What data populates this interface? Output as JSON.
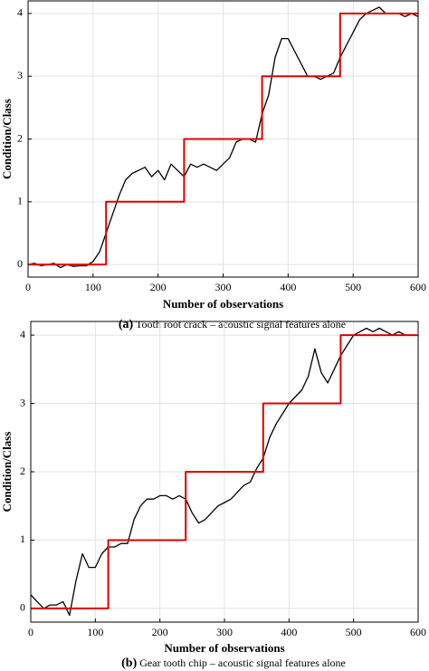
{
  "chart_data": [
    {
      "type": "line",
      "xlabel": "Number of observations",
      "ylabel": "Condition/Class",
      "caption_label": "(a)",
      "caption": "Tooth root crack – acoustic signal features alone",
      "xlim": [
        0,
        600
      ],
      "ylim": [
        -0.2,
        4.2
      ],
      "xticks": [
        0,
        100,
        200,
        300,
        400,
        500,
        600
      ],
      "yticks": [
        0,
        1,
        2,
        3,
        4
      ],
      "grid": true,
      "series": [
        {
          "color": "#000000",
          "x": [
            0,
            10,
            20,
            30,
            40,
            50,
            60,
            70,
            80,
            90,
            100,
            110,
            120,
            130,
            140,
            150,
            160,
            170,
            180,
            190,
            200,
            210,
            220,
            230,
            240,
            250,
            260,
            270,
            280,
            290,
            300,
            310,
            320,
            330,
            340,
            350,
            360,
            370,
            380,
            390,
            400,
            410,
            420,
            430,
            440,
            450,
            460,
            470,
            480,
            490,
            500,
            510,
            520,
            530,
            540,
            550,
            560,
            570,
            580,
            590,
            600
          ],
          "values": [
            0,
            0.02,
            -0.02,
            0,
            0.02,
            -0.05,
            0,
            -0.03,
            -0.02,
            -0.02,
            0.05,
            0.2,
            0.5,
            0.8,
            1.1,
            1.35,
            1.45,
            1.5,
            1.55,
            1.4,
            1.5,
            1.35,
            1.6,
            1.5,
            1.4,
            1.6,
            1.55,
            1.6,
            1.55,
            1.5,
            1.6,
            1.7,
            1.95,
            2.0,
            2.0,
            1.95,
            2.4,
            2.7,
            3.3,
            3.6,
            3.6,
            3.4,
            3.2,
            3.0,
            3.0,
            2.95,
            3.0,
            3.05,
            3.3,
            3.5,
            3.7,
            3.9,
            4.0,
            4.05,
            4.1,
            4.0,
            4.0,
            4.0,
            3.95,
            4.0,
            3.95
          ]
        },
        {
          "color": "#e00000",
          "x": [
            0,
            120,
            120,
            240,
            240,
            360,
            360,
            480,
            480,
            600
          ],
          "values": [
            0,
            0,
            1,
            1,
            2,
            2,
            3,
            3,
            4,
            4
          ]
        }
      ]
    },
    {
      "type": "line",
      "xlabel": "Number of observations",
      "ylabel": "Condition/Class",
      "caption_label": "(b)",
      "caption": "Gear tooth chip – acoustic signal features alone",
      "xlim": [
        0,
        600
      ],
      "ylim": [
        -0.2,
        4.2
      ],
      "xticks": [
        0,
        100,
        200,
        300,
        400,
        500,
        600
      ],
      "yticks": [
        0,
        1,
        2,
        3,
        4
      ],
      "grid": true,
      "series": [
        {
          "color": "#000000",
          "x": [
            0,
            10,
            20,
            30,
            40,
            50,
            60,
            70,
            80,
            90,
            100,
            110,
            120,
            130,
            140,
            150,
            160,
            170,
            180,
            190,
            200,
            210,
            220,
            230,
            240,
            250,
            260,
            270,
            280,
            290,
            300,
            310,
            320,
            330,
            340,
            350,
            360,
            370,
            380,
            390,
            400,
            410,
            420,
            430,
            440,
            450,
            460,
            470,
            480,
            490,
            500,
            510,
            520,
            530,
            540,
            550,
            560,
            570,
            580,
            590,
            600
          ],
          "values": [
            0.2,
            0.1,
            0,
            0.05,
            0.05,
            0.1,
            -0.1,
            0.4,
            0.8,
            0.6,
            0.6,
            0.8,
            0.9,
            0.9,
            0.95,
            0.95,
            1.3,
            1.5,
            1.6,
            1.6,
            1.65,
            1.65,
            1.6,
            1.65,
            1.6,
            1.4,
            1.25,
            1.3,
            1.4,
            1.5,
            1.55,
            1.6,
            1.7,
            1.8,
            1.85,
            2.05,
            2.2,
            2.5,
            2.7,
            2.85,
            3.0,
            3.1,
            3.2,
            3.4,
            3.8,
            3.45,
            3.3,
            3.5,
            3.7,
            3.85,
            4.0,
            4.05,
            4.1,
            4.05,
            4.1,
            4.05,
            4.0,
            4.05,
            4.0,
            4.0,
            4.0
          ]
        },
        {
          "color": "#e00000",
          "x": [
            0,
            120,
            120,
            240,
            240,
            360,
            360,
            480,
            480,
            600
          ],
          "values": [
            0,
            0,
            1,
            1,
            2,
            2,
            3,
            3,
            4,
            4
          ]
        }
      ]
    }
  ]
}
